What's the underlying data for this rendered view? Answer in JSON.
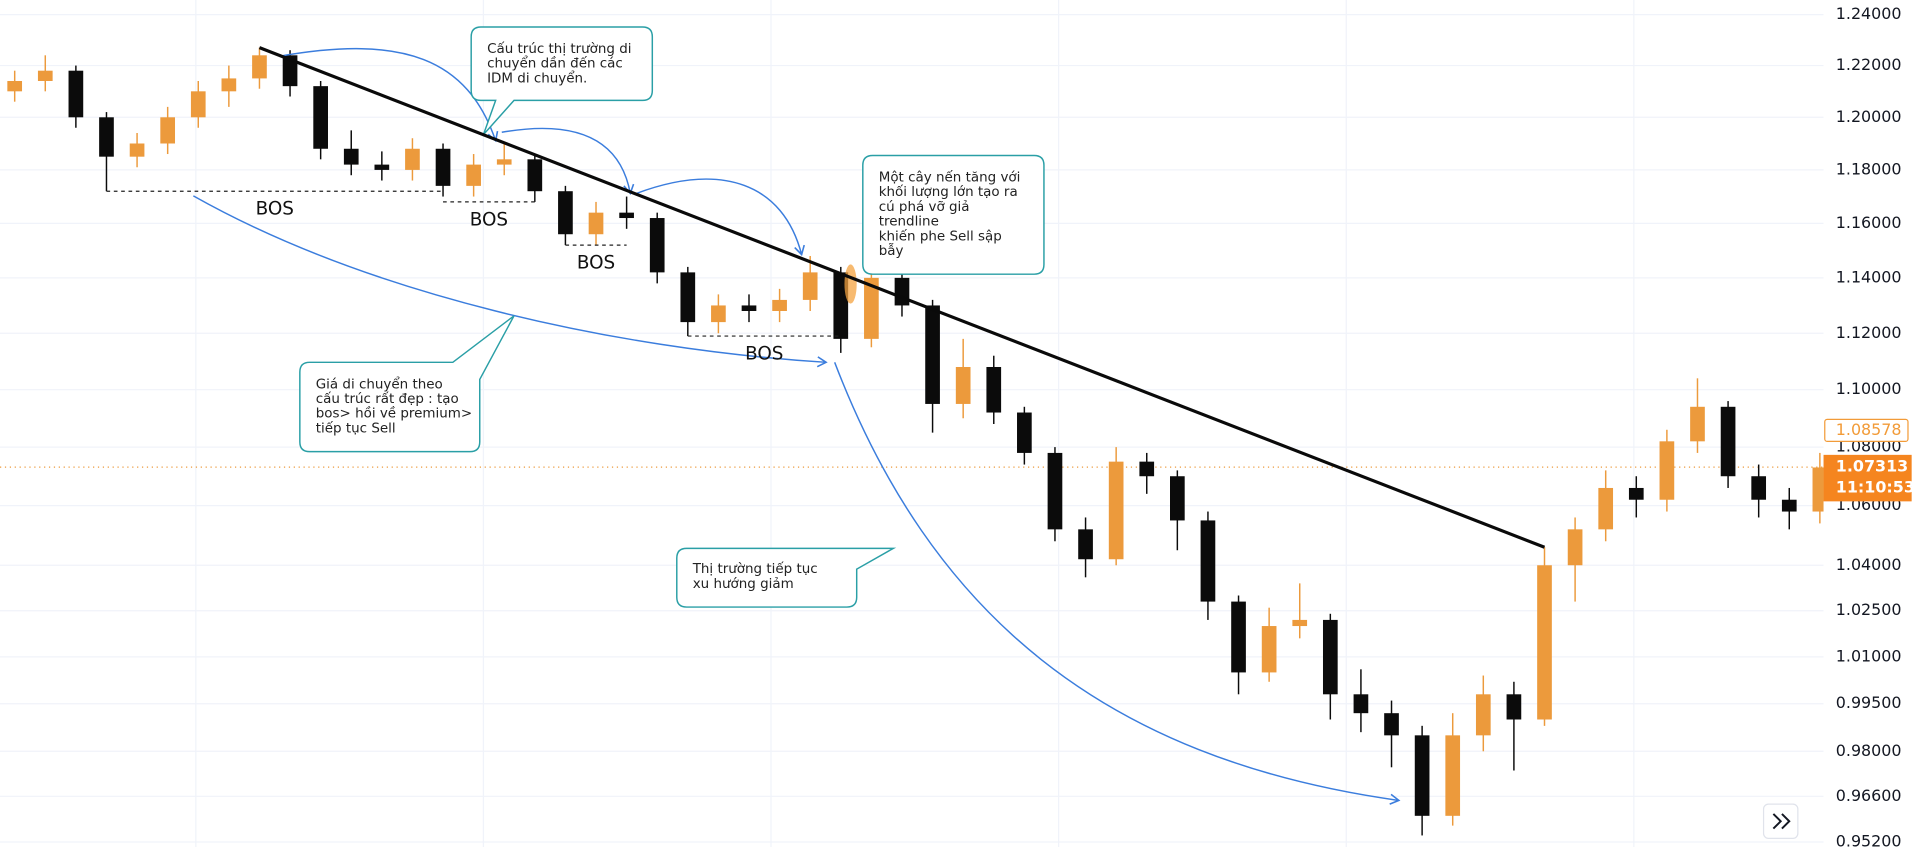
{
  "chart_data": {
    "type": "candlestick",
    "log_scale": true,
    "grid": true,
    "up_color": "#ec9a3c",
    "down_color": "#0b0b0b",
    "ylim": [
      0.9505,
      1.2458
    ],
    "yticks": [
      {
        "value": 1.24,
        "label": "1.24000"
      },
      {
        "value": 1.22,
        "label": "1.22000"
      },
      {
        "value": 1.2,
        "label": "1.20000"
      },
      {
        "value": 1.18,
        "label": "1.18000"
      },
      {
        "value": 1.16,
        "label": "1.16000"
      },
      {
        "value": 1.14,
        "label": "1.14000"
      },
      {
        "value": 1.12,
        "label": "1.12000"
      },
      {
        "value": 1.1,
        "label": "1.10000"
      },
      {
        "value": 1.08,
        "label": "1.08000"
      },
      {
        "value": 1.06,
        "label": "1.06000"
      },
      {
        "value": 1.04,
        "label": "1.04000"
      },
      {
        "value": 1.025,
        "label": "1.02500"
      },
      {
        "value": 1.01,
        "label": "1.01000"
      },
      {
        "value": 0.995,
        "label": "0.99500"
      },
      {
        "value": 0.98,
        "label": "0.98000"
      },
      {
        "value": 0.966,
        "label": "0.96600"
      },
      {
        "value": 0.952,
        "label": "0.95200"
      }
    ],
    "candles": {
      "open": [
        1.21,
        1.214,
        1.218,
        1.2,
        1.185,
        1.19,
        1.2,
        1.21,
        1.215,
        1.224,
        1.212,
        1.188,
        1.182,
        1.18,
        1.188,
        1.174,
        1.182,
        1.184,
        1.172,
        1.156,
        1.164,
        1.162,
        1.142,
        1.124,
        1.13,
        1.128,
        1.132,
        1.142,
        1.118,
        1.14,
        1.13,
        1.095,
        1.108,
        1.092,
        1.078,
        1.052,
        1.042,
        1.075,
        1.07,
        1.055,
        1.028,
        1.005,
        1.02,
        1.022,
        0.998,
        0.992,
        0.985,
        0.96,
        0.985,
        0.998,
        0.99,
        1.04,
        1.052,
        1.066,
        1.062,
        1.082,
        1.094,
        1.07,
        1.062,
        1.058
      ],
      "high": [
        1.218,
        1.224,
        1.22,
        1.202,
        1.194,
        1.204,
        1.214,
        1.22,
        1.227,
        1.226,
        1.214,
        1.195,
        1.187,
        1.192,
        1.19,
        1.186,
        1.19,
        1.186,
        1.174,
        1.168,
        1.17,
        1.164,
        1.144,
        1.134,
        1.134,
        1.136,
        1.148,
        1.144,
        1.146,
        1.142,
        1.132,
        1.118,
        1.112,
        1.094,
        1.08,
        1.056,
        1.08,
        1.078,
        1.072,
        1.058,
        1.03,
        1.026,
        1.034,
        1.024,
        1.006,
        0.996,
        0.988,
        0.992,
        1.004,
        1.002,
        1.046,
        1.056,
        1.072,
        1.07,
        1.086,
        1.104,
        1.096,
        1.074,
        1.066,
        1.078
      ],
      "low": [
        1.206,
        1.21,
        1.196,
        1.172,
        1.181,
        1.186,
        1.196,
        1.204,
        1.211,
        1.208,
        1.184,
        1.178,
        1.176,
        1.176,
        1.17,
        1.17,
        1.178,
        1.168,
        1.152,
        1.152,
        1.158,
        1.138,
        1.119,
        1.12,
        1.124,
        1.124,
        1.128,
        1.113,
        1.115,
        1.126,
        1.085,
        1.09,
        1.088,
        1.074,
        1.048,
        1.036,
        1.04,
        1.064,
        1.045,
        1.022,
        0.998,
        1.002,
        1.016,
        0.99,
        0.986,
        0.975,
        0.954,
        0.957,
        0.98,
        0.974,
        0.988,
        1.028,
        1.048,
        1.056,
        1.058,
        1.078,
        1.066,
        1.056,
        1.052,
        1.054
      ],
      "close": [
        1.214,
        1.218,
        1.2,
        1.185,
        1.19,
        1.2,
        1.21,
        1.215,
        1.224,
        1.212,
        1.188,
        1.182,
        1.18,
        1.188,
        1.174,
        1.182,
        1.184,
        1.172,
        1.156,
        1.164,
        1.162,
        1.142,
        1.124,
        1.13,
        1.128,
        1.132,
        1.142,
        1.118,
        1.14,
        1.13,
        1.095,
        1.108,
        1.092,
        1.078,
        1.052,
        1.042,
        1.075,
        1.07,
        1.055,
        1.028,
        1.005,
        1.02,
        1.022,
        0.998,
        0.992,
        0.985,
        0.96,
        0.985,
        0.998,
        0.99,
        1.04,
        1.052,
        1.066,
        1.062,
        1.082,
        1.094,
        1.07,
        1.062,
        1.058,
        1.073
      ]
    },
    "trendline": {
      "x": [
        8,
        50
      ],
      "y": [
        1.227,
        1.046
      ]
    },
    "bos": [
      {
        "label": "BOS",
        "price": 1.172,
        "from": 3,
        "to": 14
      },
      {
        "label": "BOS",
        "price": 1.168,
        "from": 14,
        "to": 17
      },
      {
        "label": "BOS",
        "price": 1.152,
        "from": 18,
        "to": 20
      },
      {
        "label": "BOS",
        "price": 1.119,
        "from": 22,
        "to": 27
      }
    ],
    "prev_price": 1.08578,
    "last_price": 1.07313,
    "countdown": "11:10:53",
    "annotations": [
      {
        "lines": [
          "Cấu trúc thị trường di",
          "chuyển dần đến các",
          "IDM di chuyển."
        ]
      },
      {
        "lines": [
          "Một cây nến tăng với",
          "khối lượng lớn tạo ra",
          "cú phá vỡ giả",
          "trendline",
          "khiến phe Sell sập",
          "bẫy"
        ]
      },
      {
        "lines": [
          "Giá di chuyển theo",
          "cấu trúc rất đẹp : tạo",
          "bos> hồi về premium>",
          "tiếp tục Sell"
        ]
      },
      {
        "lines": [
          "Thị trường tiếp tục",
          "xu hướng giảm"
        ]
      }
    ]
  }
}
